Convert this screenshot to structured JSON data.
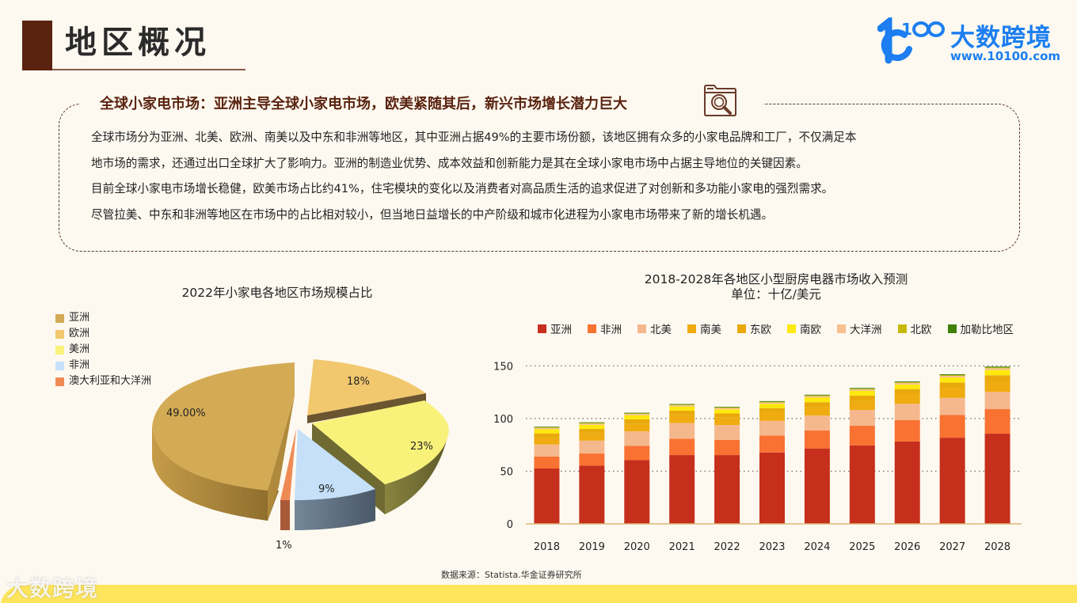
{
  "header": {
    "title": "地区概况",
    "logo_text": "大数跨境",
    "logo_url": "www.10100.com"
  },
  "summary": {
    "heading": "全球小家电市场：亚洲主导全球小家电市场，欧美紧随其后，新兴市场增长潜力巨大",
    "paragraphs": [
      "全球市场分为亚洲、北美、欧洲、南美以及中东和非洲等地区，其中亚洲占据49%的主要市场份额，该地区拥有众多的小家电品牌和工厂，不仅满足本",
      "地市场的需求，还通过出口全球扩大了影响力。亚洲的制造业优势、成本效益和创新能力是其在全球小家电市场中占据主导地位的关键因素。",
      "目前全球小家电市场增长稳健，欧美市场占比约41%，住宅模块的变化以及消费者对高品质生活的追求促进了对创新和多功能小家电的强烈需求。",
      "尽管拉美、中东和非洲等地区在市场中的占比相对较小，但当地日益增长的中产阶级和城市化进程为小家电市场带来了新的增长机遇。"
    ]
  },
  "chart_data": [
    {
      "type": "pie",
      "title": "2022年小家电各地区市场规模占比",
      "legend_position": "top-left",
      "categories": [
        "亚洲",
        "欧洲",
        "美洲",
        "非洲",
        "澳大利亚和大洋洲"
      ],
      "values": [
        49,
        18,
        23,
        9,
        1
      ],
      "labels": [
        "49.00%",
        "18%",
        "23%",
        "9%",
        "1%"
      ],
      "colors": [
        "#d4ab55",
        "#f2c86e",
        "#f9f27a",
        "#c5e0f8",
        "#f08a55"
      ]
    },
    {
      "type": "bar",
      "stacked": true,
      "title": "2018-2028年各地区小型厨房电器市场收入预测",
      "subtitle": "单位：十亿/美元",
      "xlabel": "",
      "ylabel": "",
      "ylim": [
        0,
        150
      ],
      "yticks": [
        0,
        50,
        100,
        150
      ],
      "grid": "dotted horizontal",
      "legend_position": "top",
      "categories": [
        "2018",
        "2019",
        "2020",
        "2021",
        "2022",
        "2023",
        "2024",
        "2025",
        "2026",
        "2027",
        "2028"
      ],
      "series": [
        {
          "name": "亚洲",
          "color": "#c62f1c",
          "values": [
            52.6,
            55.3,
            60.5,
            65.3,
            65.3,
            67.8,
            71.6,
            74.5,
            78.2,
            81.8,
            85.6
          ]
        },
        {
          "name": "非洲",
          "color": "#f97232",
          "values": [
            11.3,
            11.5,
            13.5,
            15.5,
            14.5,
            16.0,
            17.0,
            18.6,
            20.2,
            21.5,
            23.3
          ]
        },
        {
          "name": "北美",
          "color": "#f5b88d",
          "values": [
            11.5,
            12.2,
            13.8,
            15.0,
            14.0,
            14.0,
            14.2,
            15.0,
            15.6,
            16.3,
            16.4
          ]
        },
        {
          "name": "南美",
          "color": "#efab10",
          "values": [
            6.0,
            6.8,
            7.0,
            7.4,
            7.0,
            8.2,
            8.3,
            8.4,
            8.8,
            9.3,
            9.5
          ]
        },
        {
          "name": "东欧",
          "color": "#e9a90a",
          "values": [
            4.5,
            4.3,
            4.4,
            4.3,
            4.0,
            3.9,
            4.4,
            5.3,
            5.1,
            5.3,
            6.2
          ]
        },
        {
          "name": "南欧",
          "color": "#fde90c",
          "values": [
            3.9,
            3.9,
            3.9,
            3.9,
            3.9,
            4.0,
            4.4,
            4.4,
            4.4,
            4.7,
            5.0
          ]
        },
        {
          "name": "大洋洲",
          "color": "#f6c08f",
          "values": [
            1.2,
            1.2,
            1.2,
            1.2,
            1.2,
            1.3,
            1.3,
            1.4,
            1.5,
            1.6,
            1.7
          ]
        },
        {
          "name": "北欧",
          "color": "#c6b90a",
          "values": [
            0.6,
            0.6,
            0.6,
            0.6,
            0.6,
            0.6,
            0.7,
            0.7,
            0.7,
            0.7,
            0.8
          ]
        },
        {
          "name": "加勒比地区",
          "color": "#3e8009",
          "values": [
            0.6,
            0.6,
            0.6,
            0.6,
            0.6,
            0.7,
            0.7,
            0.7,
            0.7,
            0.8,
            0.8
          ]
        }
      ]
    }
  ],
  "pie_legend": [
    {
      "label": "亚洲",
      "color": "#d4ab55"
    },
    {
      "label": "欧洲",
      "color": "#f2c86e"
    },
    {
      "label": "美洲",
      "color": "#f9f27a"
    },
    {
      "label": "非洲",
      "color": "#c5e0f8"
    },
    {
      "label": "澳大利亚和大洋洲",
      "color": "#f08a55"
    }
  ],
  "footer": {
    "source": "数据来源：Statista.华金证券研究所",
    "watermark": "大数跨境"
  }
}
